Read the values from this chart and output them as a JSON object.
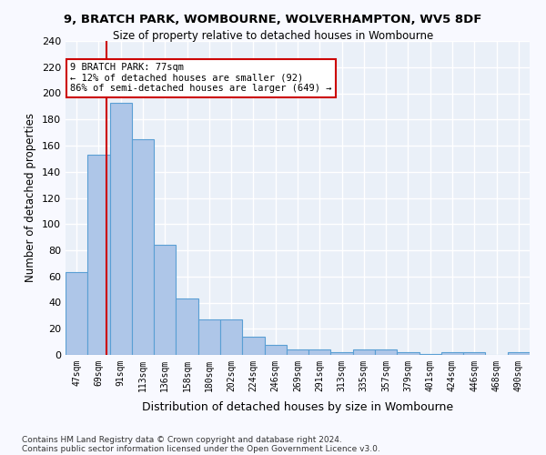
{
  "title1": "9, BRATCH PARK, WOMBOURNE, WOLVERHAMPTON, WV5 8DF",
  "title2": "Size of property relative to detached houses in Wombourne",
  "xlabel": "Distribution of detached houses by size in Wombourne",
  "ylabel": "Number of detached properties",
  "footer1": "Contains HM Land Registry data © Crown copyright and database right 2024.",
  "footer2": "Contains public sector information licensed under the Open Government Licence v3.0.",
  "bar_labels": [
    "47sqm",
    "69sqm",
    "91sqm",
    "113sqm",
    "136sqm",
    "158sqm",
    "180sqm",
    "202sqm",
    "224sqm",
    "246sqm",
    "269sqm",
    "291sqm",
    "313sqm",
    "335sqm",
    "357sqm",
    "379sqm",
    "401sqm",
    "424sqm",
    "446sqm",
    "468sqm",
    "490sqm"
  ],
  "bar_values": [
    63,
    153,
    193,
    165,
    84,
    43,
    27,
    27,
    14,
    8,
    4,
    4,
    2,
    4,
    4,
    2,
    1,
    2,
    2,
    0,
    2
  ],
  "bar_color": "#aec6e8",
  "bar_edge_color": "#5a9fd4",
  "property_size": 77,
  "property_label": "9 BRATCH PARK: 77sqm",
  "annotation_line1": "← 12% of detached houses are smaller (92)",
  "annotation_line2": "86% of semi-detached houses are larger (649) →",
  "vline_color": "#cc0000",
  "vline_x_index": 0.86,
  "annotation_box_color": "#ffffff",
  "annotation_box_edge": "#cc0000",
  "ylim": [
    0,
    240
  ],
  "yticks": [
    0,
    20,
    40,
    60,
    80,
    100,
    120,
    140,
    160,
    180,
    200,
    220,
    240
  ],
  "bg_color": "#eaf0f8",
  "grid_color": "#ffffff"
}
